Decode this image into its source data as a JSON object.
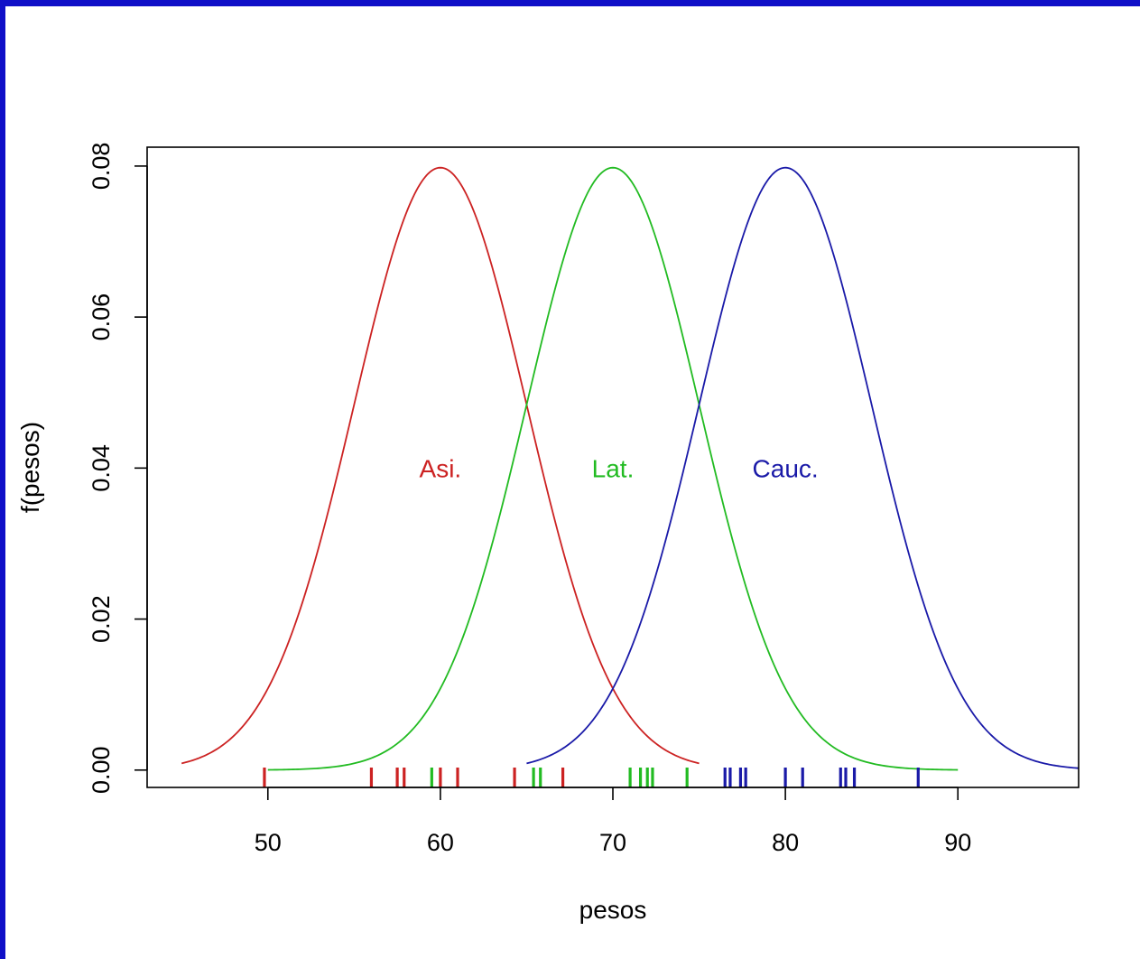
{
  "chart_data": {
    "type": "line",
    "xlabel": "pesos",
    "ylabel": "f(pesos)",
    "xlim": [
      43,
      97
    ],
    "ylim": [
      -0.0023,
      0.0825
    ],
    "xticks": [
      50,
      60,
      70,
      80,
      90
    ],
    "yticks": [
      0.0,
      0.02,
      0.04,
      0.06,
      0.08
    ],
    "xtick_labels": [
      "50",
      "60",
      "70",
      "80",
      "90"
    ],
    "ytick_labels": [
      "0.00",
      "0.02",
      "0.04",
      "0.06",
      "0.08"
    ],
    "grid": false,
    "legend": "none",
    "series": [
      {
        "name": "Asi.",
        "color": "#cc2222",
        "mean": 60,
        "sd": 5,
        "xrange": [
          45,
          75
        ],
        "label_pos": [
          60,
          0.04
        ],
        "rug": [
          49.8,
          56.0,
          57.5,
          57.9,
          60.0,
          61.0,
          64.3,
          67.1
        ]
      },
      {
        "name": "Lat.",
        "color": "#22bb22",
        "mean": 70,
        "sd": 5,
        "xrange": [
          50,
          90
        ],
        "label_pos": [
          70,
          0.04
        ],
        "rug": [
          59.5,
          65.4,
          65.8,
          71.0,
          71.6,
          72.0,
          72.3,
          74.3
        ]
      },
      {
        "name": "Cauc.",
        "color": "#1a1aa8",
        "mean": 80,
        "sd": 5,
        "xrange": [
          65,
          97
        ],
        "label_pos": [
          80,
          0.04
        ],
        "rug": [
          76.5,
          76.8,
          77.4,
          77.7,
          80.0,
          81.0,
          83.2,
          83.5,
          84.0,
          87.7
        ]
      }
    ]
  }
}
